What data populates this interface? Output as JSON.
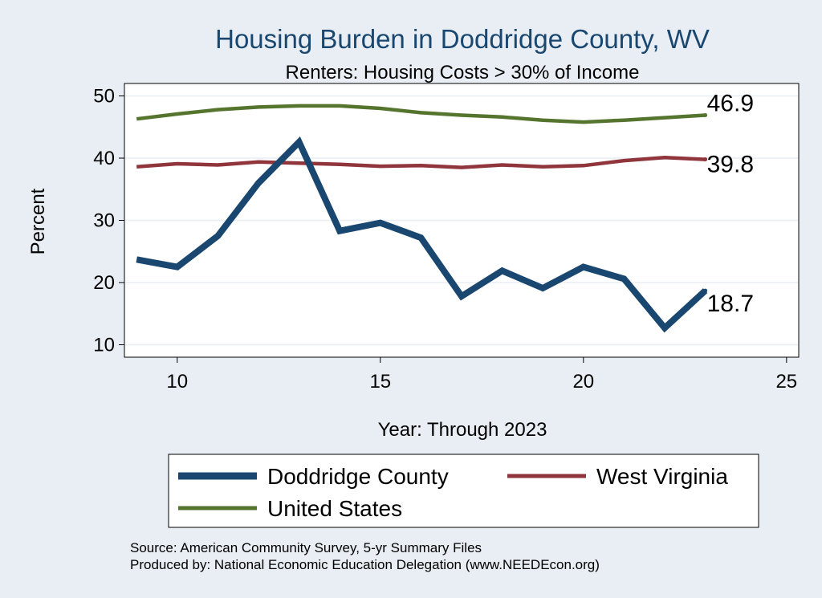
{
  "chart_data": {
    "type": "line",
    "title": "Housing Burden in Doddridge County, WV",
    "subtitle": "Renters: Housing Costs > 30% of Income",
    "xlabel": "Year: Through 2023",
    "ylabel": "Percent",
    "xlim": [
      8.7,
      25.3
    ],
    "ylim": [
      8,
      52
    ],
    "xticks": [
      10,
      15,
      20,
      25
    ],
    "yticks": [
      10,
      20,
      30,
      40,
      50
    ],
    "grid": true,
    "x": [
      9,
      10,
      11,
      12,
      13,
      14,
      15,
      16,
      17,
      18,
      19,
      20,
      21,
      22,
      23
    ],
    "series": [
      {
        "name": "Doddridge County",
        "color": "#1a476f",
        "values": [
          23.7,
          22.5,
          27.5,
          36.0,
          42.6,
          28.3,
          29.6,
          27.2,
          17.8,
          21.9,
          19.1,
          22.5,
          20.6,
          12.7,
          18.7
        ],
        "end_label": "18.7"
      },
      {
        "name": "West Virginia",
        "color": "#90353b",
        "values": [
          38.6,
          39.1,
          38.9,
          39.4,
          39.2,
          39.0,
          38.7,
          38.8,
          38.5,
          38.9,
          38.6,
          38.8,
          39.6,
          40.1,
          39.8
        ],
        "end_label": "39.8"
      },
      {
        "name": "United States",
        "color": "#55752f",
        "values": [
          46.3,
          47.1,
          47.8,
          48.2,
          48.4,
          48.4,
          48.0,
          47.3,
          46.9,
          46.6,
          46.1,
          45.8,
          46.1,
          46.5,
          46.9
        ],
        "end_label": "46.9"
      }
    ],
    "legend": {
      "position": "bottom",
      "entries": [
        "Doddridge County",
        "West Virginia",
        "United States"
      ]
    },
    "notes": [
      "Source: American Community Survey, 5-yr Summary Files",
      "Produced by: National Economic Education Delegation (www.NEEDEcon.org)"
    ]
  },
  "colors": {
    "background": "#e8eef3",
    "plot_background": "#ffffff",
    "title": "#1a476f",
    "grid": "#e8eef3"
  }
}
